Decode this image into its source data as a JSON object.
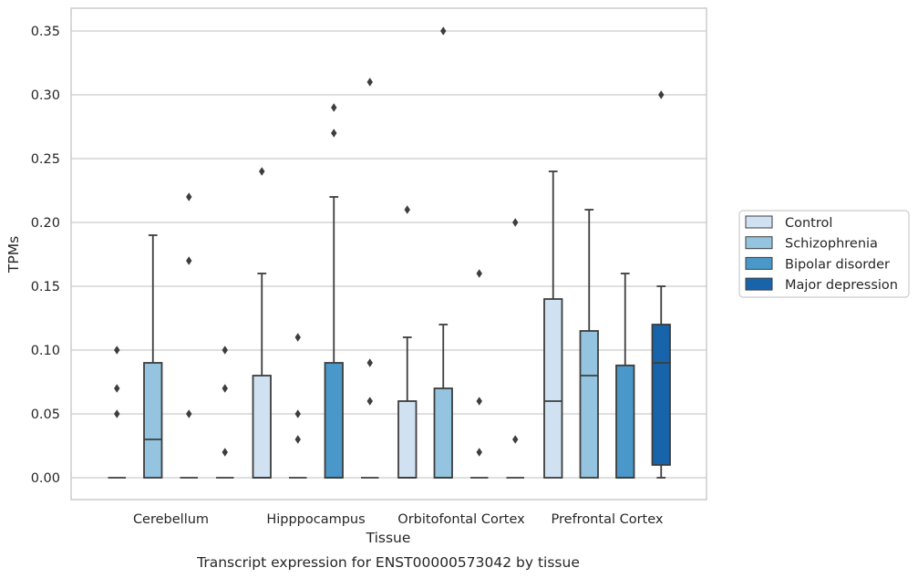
{
  "caption": "Transcript expression for ENST00000573042 by tissue",
  "chart_data": {
    "type": "box",
    "title": "",
    "xlabel": "Tissue",
    "ylabel": "TPMs",
    "ylim": [
      -0.017,
      0.368
    ],
    "yticks": [
      "0.00",
      "0.05",
      "0.10",
      "0.15",
      "0.20",
      "0.25",
      "0.30",
      "0.35"
    ],
    "grid": "horizontal",
    "legend_placement": "right",
    "categories": [
      "Cerebellum",
      "Hipppocampus",
      "Orbitofontal Cortex",
      "Prefrontal Cortex"
    ],
    "series": [
      {
        "name": "Control",
        "color": "#d0e1f2",
        "boxes": [
          {
            "q1": 0,
            "median": 0,
            "q3": 0,
            "whislo": 0,
            "whishi": 0,
            "fliers": [
              0.05,
              0.07,
              0.1
            ]
          },
          {
            "q1": 0,
            "median": 0,
            "q3": 0.08,
            "whislo": 0,
            "whishi": 0.16,
            "fliers": [
              0.24
            ]
          },
          {
            "q1": 0,
            "median": 0,
            "q3": 0.06,
            "whislo": 0,
            "whishi": 0.11,
            "fliers": [
              0.21
            ]
          },
          {
            "q1": 0,
            "median": 0.06,
            "q3": 0.14,
            "whislo": 0,
            "whishi": 0.24,
            "fliers": []
          }
        ]
      },
      {
        "name": "Schizophrenia",
        "color": "#94c4df",
        "boxes": [
          {
            "q1": 0,
            "median": 0.03,
            "q3": 0.09,
            "whislo": 0,
            "whishi": 0.19,
            "fliers": []
          },
          {
            "q1": 0,
            "median": 0,
            "q3": 0,
            "whislo": 0,
            "whishi": 0,
            "fliers": [
              0.03,
              0.05,
              0.11
            ]
          },
          {
            "q1": 0,
            "median": 0,
            "q3": 0.07,
            "whislo": 0,
            "whishi": 0.12,
            "fliers": [
              0.35
            ]
          },
          {
            "q1": 0,
            "median": 0.08,
            "q3": 0.115,
            "whislo": 0,
            "whishi": 0.21,
            "fliers": []
          }
        ]
      },
      {
        "name": "Bipolar disorder",
        "color": "#4a98c9",
        "boxes": [
          {
            "q1": 0,
            "median": 0,
            "q3": 0,
            "whislo": 0,
            "whishi": 0,
            "fliers": [
              0.05,
              0.17,
              0.22
            ]
          },
          {
            "q1": 0,
            "median": 0,
            "q3": 0.09,
            "whislo": 0,
            "whishi": 0.22,
            "fliers": [
              0.27,
              0.29
            ]
          },
          {
            "q1": 0,
            "median": 0,
            "q3": 0,
            "whislo": 0,
            "whishi": 0,
            "fliers": [
              0.02,
              0.06,
              0.16
            ]
          },
          {
            "q1": 0,
            "median": 0,
            "q3": 0.088,
            "whislo": 0,
            "whishi": 0.16,
            "fliers": []
          }
        ]
      },
      {
        "name": "Major depression",
        "color": "#1764ab",
        "boxes": [
          {
            "q1": 0,
            "median": 0,
            "q3": 0,
            "whislo": 0,
            "whishi": 0,
            "fliers": [
              0.02,
              0.07,
              0.1
            ]
          },
          {
            "q1": 0,
            "median": 0,
            "q3": 0,
            "whislo": 0,
            "whishi": 0,
            "fliers": [
              0.06,
              0.09,
              0.31
            ]
          },
          {
            "q1": 0,
            "median": 0,
            "q3": 0,
            "whislo": 0,
            "whishi": 0,
            "fliers": [
              0.03,
              0.2
            ]
          },
          {
            "q1": 0.01,
            "median": 0.09,
            "q3": 0.12,
            "whislo": 0,
            "whishi": 0.15,
            "fliers": [
              0.3
            ]
          }
        ]
      }
    ],
    "colors": {
      "grid": "#cccccc",
      "frame": "#cccccc",
      "box_edge": "#3d3d3d",
      "text": "#262626"
    }
  }
}
